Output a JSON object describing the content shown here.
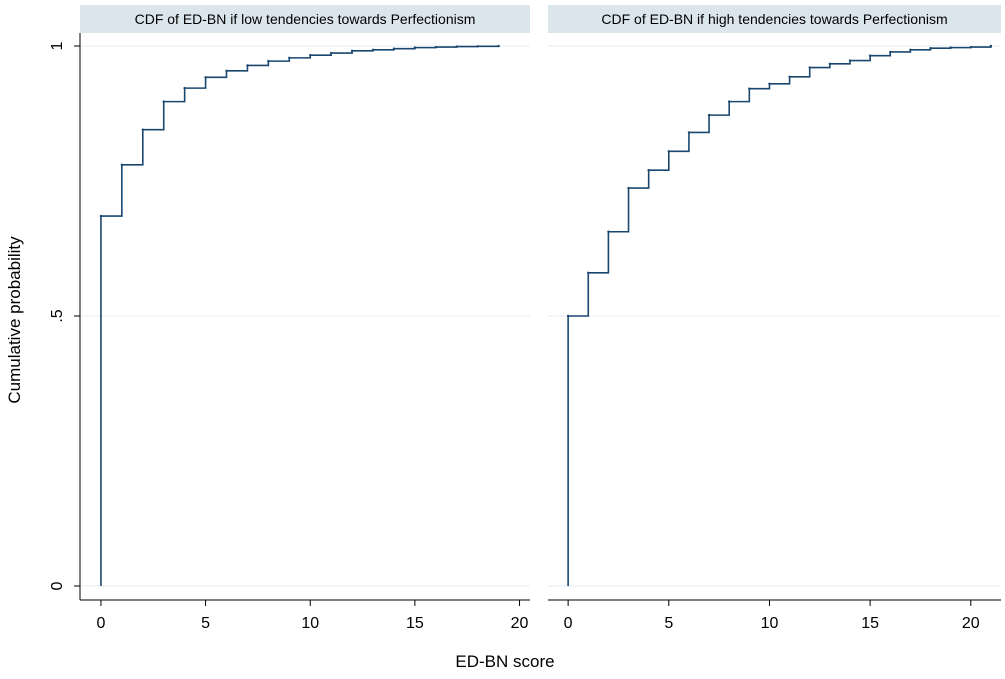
{
  "chart_data": {
    "type": "line",
    "step": true,
    "ylabel": "Cumulative probability",
    "xlabel": "ED-BN score",
    "grid": true,
    "ylim": [
      0,
      1
    ],
    "yticks": [
      {
        "value": 0,
        "label": "0"
      },
      {
        "value": 0.5,
        "label": ".5"
      },
      {
        "value": 1,
        "label": "1"
      }
    ],
    "xticks": [
      {
        "value": 0,
        "label": "0"
      },
      {
        "value": 5,
        "label": "5"
      },
      {
        "value": 10,
        "label": "10"
      },
      {
        "value": 15,
        "label": "15"
      },
      {
        "value": 20,
        "label": "20"
      }
    ],
    "panels": [
      {
        "title": "CDF of ED-BN if low tendencies towards Perfectionism",
        "xlim": [
          -1,
          20.5
        ],
        "x": [
          0,
          1,
          2,
          3,
          4,
          5,
          6,
          7,
          8,
          9,
          10,
          11,
          12,
          13,
          14,
          15,
          16,
          17,
          18,
          19
        ],
        "y": [
          0.685,
          0.78,
          0.845,
          0.897,
          0.922,
          0.942,
          0.954,
          0.964,
          0.972,
          0.978,
          0.983,
          0.987,
          0.991,
          0.993,
          0.995,
          0.997,
          0.998,
          0.999,
          0.9995,
          1.0
        ]
      },
      {
        "title": "CDF of ED-BN if high tendencies towards Perfectionism",
        "xlim": [
          -1,
          21.5
        ],
        "x": [
          0,
          1,
          2,
          3,
          4,
          5,
          6,
          7,
          8,
          9,
          10,
          11,
          12,
          13,
          14,
          15,
          16,
          17,
          18,
          19,
          20,
          21
        ],
        "y": [
          0.5,
          0.58,
          0.656,
          0.737,
          0.77,
          0.805,
          0.84,
          0.872,
          0.897,
          0.921,
          0.93,
          0.943,
          0.96,
          0.967,
          0.973,
          0.982,
          0.989,
          0.993,
          0.996,
          0.997,
          0.998,
          1.0
        ]
      }
    ]
  }
}
